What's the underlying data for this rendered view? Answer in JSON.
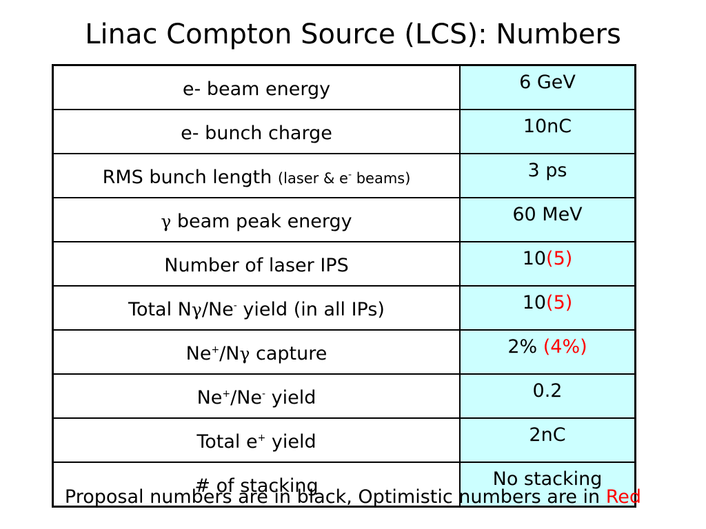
{
  "title": "Linac Compton Source (LCS): Numbers",
  "colors": {
    "value_bg": "#ccffff",
    "optimistic": "#ff0000"
  },
  "rows": [
    {
      "label": "e- beam energy",
      "value": "6 GeV"
    },
    {
      "label": "e- bunch charge",
      "value": "10nC"
    },
    {
      "label": "RMS bunch length",
      "label_note": "(laser & e",
      "label_note_sup": "-",
      "label_note_end": " beams)",
      "value": "3 ps"
    },
    {
      "label_sym": "γ",
      "label": " beam peak energy",
      "value": "60 MeV"
    },
    {
      "label": "Number of laser IPS",
      "value": "10",
      "value_opt": "(5)"
    },
    {
      "label_a": "Total N",
      "label_sym": "γ",
      "label_b": "/Ne",
      "label_sup": "-",
      "label_c": " yield (in all IPs)",
      "value": "10",
      "value_opt": "(5)"
    },
    {
      "label_a": "Ne",
      "label_sup": "+",
      "label_b": "/N",
      "label_sym": "γ",
      "label_c": " capture",
      "value": "2% ",
      "value_opt": "(4%)"
    },
    {
      "label_a": "Ne",
      "label_sup1": "+",
      "label_b": "/Ne",
      "label_sup2": "-",
      "label_c": " yield",
      "value": "0.2"
    },
    {
      "label_a": "Total e",
      "label_sup": "+",
      "label_c": " yield",
      "value": "2nC"
    },
    {
      "label": "# of stacking",
      "value": "No stacking"
    }
  ],
  "footer": {
    "text": "Proposal numbers are in black, Optimistic numbers are in ",
    "highlight": "Red"
  }
}
